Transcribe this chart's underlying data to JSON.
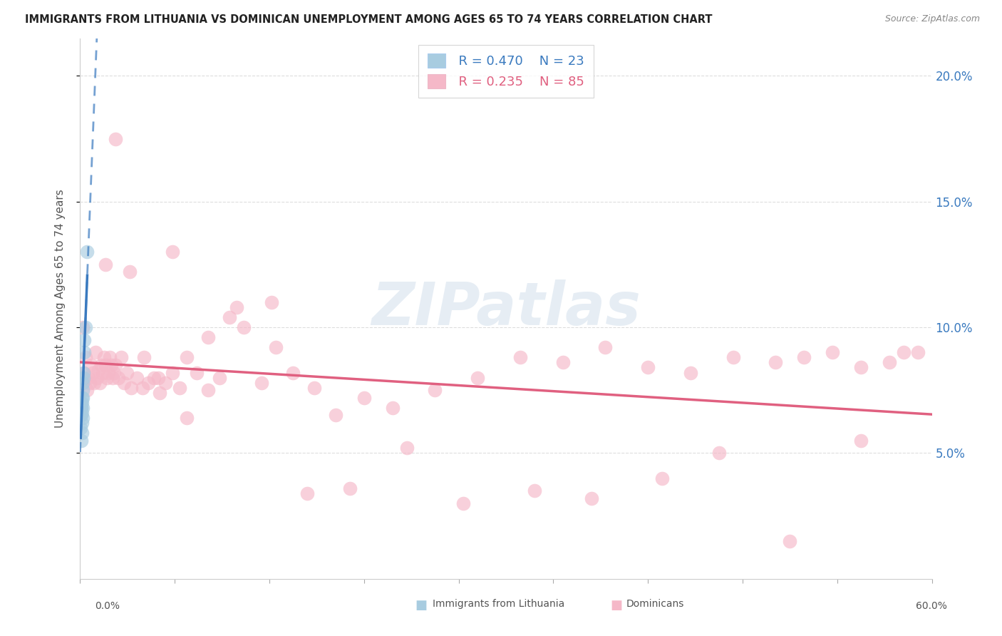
{
  "title": "IMMIGRANTS FROM LITHUANIA VS DOMINICAN UNEMPLOYMENT AMONG AGES 65 TO 74 YEARS CORRELATION CHART",
  "source": "Source: ZipAtlas.com",
  "ylabel": "Unemployment Among Ages 65 to 74 years",
  "xmin": 0.0,
  "xmax": 0.6,
  "ymin": 0.0,
  "ymax": 0.215,
  "yticks": [
    0.05,
    0.1,
    0.15,
    0.2
  ],
  "ytick_labels": [
    "5.0%",
    "10.0%",
    "15.0%",
    "20.0%"
  ],
  "legend_blue_R": "R = 0.470",
  "legend_blue_N": "N = 23",
  "legend_pink_R": "R = 0.235",
  "legend_pink_N": "N = 85",
  "blue_dot_color": "#a8cce0",
  "pink_dot_color": "#f5b8c8",
  "blue_line_color": "#3a7abf",
  "pink_line_color": "#e06080",
  "watermark": "ZIPatlas",
  "blue_x": [
    0.0004,
    0.0005,
    0.0006,
    0.0007,
    0.0008,
    0.0009,
    0.001,
    0.0011,
    0.0012,
    0.0013,
    0.0014,
    0.0015,
    0.0016,
    0.0017,
    0.0018,
    0.0019,
    0.002,
    0.0022,
    0.0024,
    0.0026,
    0.003,
    0.0038,
    0.005
  ],
  "blue_y": [
    0.065,
    0.06,
    0.068,
    0.055,
    0.07,
    0.065,
    0.068,
    0.072,
    0.058,
    0.062,
    0.066,
    0.07,
    0.064,
    0.068,
    0.072,
    0.075,
    0.078,
    0.082,
    0.08,
    0.09,
    0.095,
    0.1,
    0.13
  ],
  "pink_x": [
    0.002,
    0.003,
    0.004,
    0.005,
    0.006,
    0.007,
    0.008,
    0.009,
    0.01,
    0.011,
    0.012,
    0.013,
    0.014,
    0.015,
    0.016,
    0.017,
    0.018,
    0.019,
    0.02,
    0.021,
    0.022,
    0.023,
    0.024,
    0.025,
    0.027,
    0.029,
    0.031,
    0.033,
    0.036,
    0.04,
    0.044,
    0.048,
    0.052,
    0.056,
    0.06,
    0.065,
    0.07,
    0.075,
    0.082,
    0.09,
    0.098,
    0.105,
    0.115,
    0.128,
    0.138,
    0.15,
    0.165,
    0.18,
    0.2,
    0.22,
    0.25,
    0.28,
    0.31,
    0.34,
    0.37,
    0.4,
    0.43,
    0.46,
    0.49,
    0.51,
    0.53,
    0.55,
    0.57,
    0.59,
    0.025,
    0.035,
    0.045,
    0.055,
    0.065,
    0.075,
    0.09,
    0.11,
    0.135,
    0.16,
    0.19,
    0.23,
    0.27,
    0.32,
    0.36,
    0.41,
    0.45,
    0.5,
    0.55,
    0.58,
    0.018
  ],
  "pink_y": [
    0.1,
    0.082,
    0.088,
    0.075,
    0.08,
    0.078,
    0.085,
    0.082,
    0.078,
    0.09,
    0.08,
    0.083,
    0.078,
    0.085,
    0.082,
    0.088,
    0.085,
    0.08,
    0.082,
    0.088,
    0.085,
    0.08,
    0.082,
    0.085,
    0.08,
    0.088,
    0.078,
    0.082,
    0.076,
    0.08,
    0.076,
    0.078,
    0.08,
    0.074,
    0.078,
    0.082,
    0.076,
    0.088,
    0.082,
    0.096,
    0.08,
    0.104,
    0.1,
    0.078,
    0.092,
    0.082,
    0.076,
    0.065,
    0.072,
    0.068,
    0.075,
    0.08,
    0.088,
    0.086,
    0.092,
    0.084,
    0.082,
    0.088,
    0.086,
    0.088,
    0.09,
    0.084,
    0.086,
    0.09,
    0.175,
    0.122,
    0.088,
    0.08,
    0.13,
    0.064,
    0.075,
    0.108,
    0.11,
    0.034,
    0.036,
    0.052,
    0.03,
    0.035,
    0.032,
    0.04,
    0.05,
    0.015,
    0.055,
    0.09,
    0.125
  ]
}
